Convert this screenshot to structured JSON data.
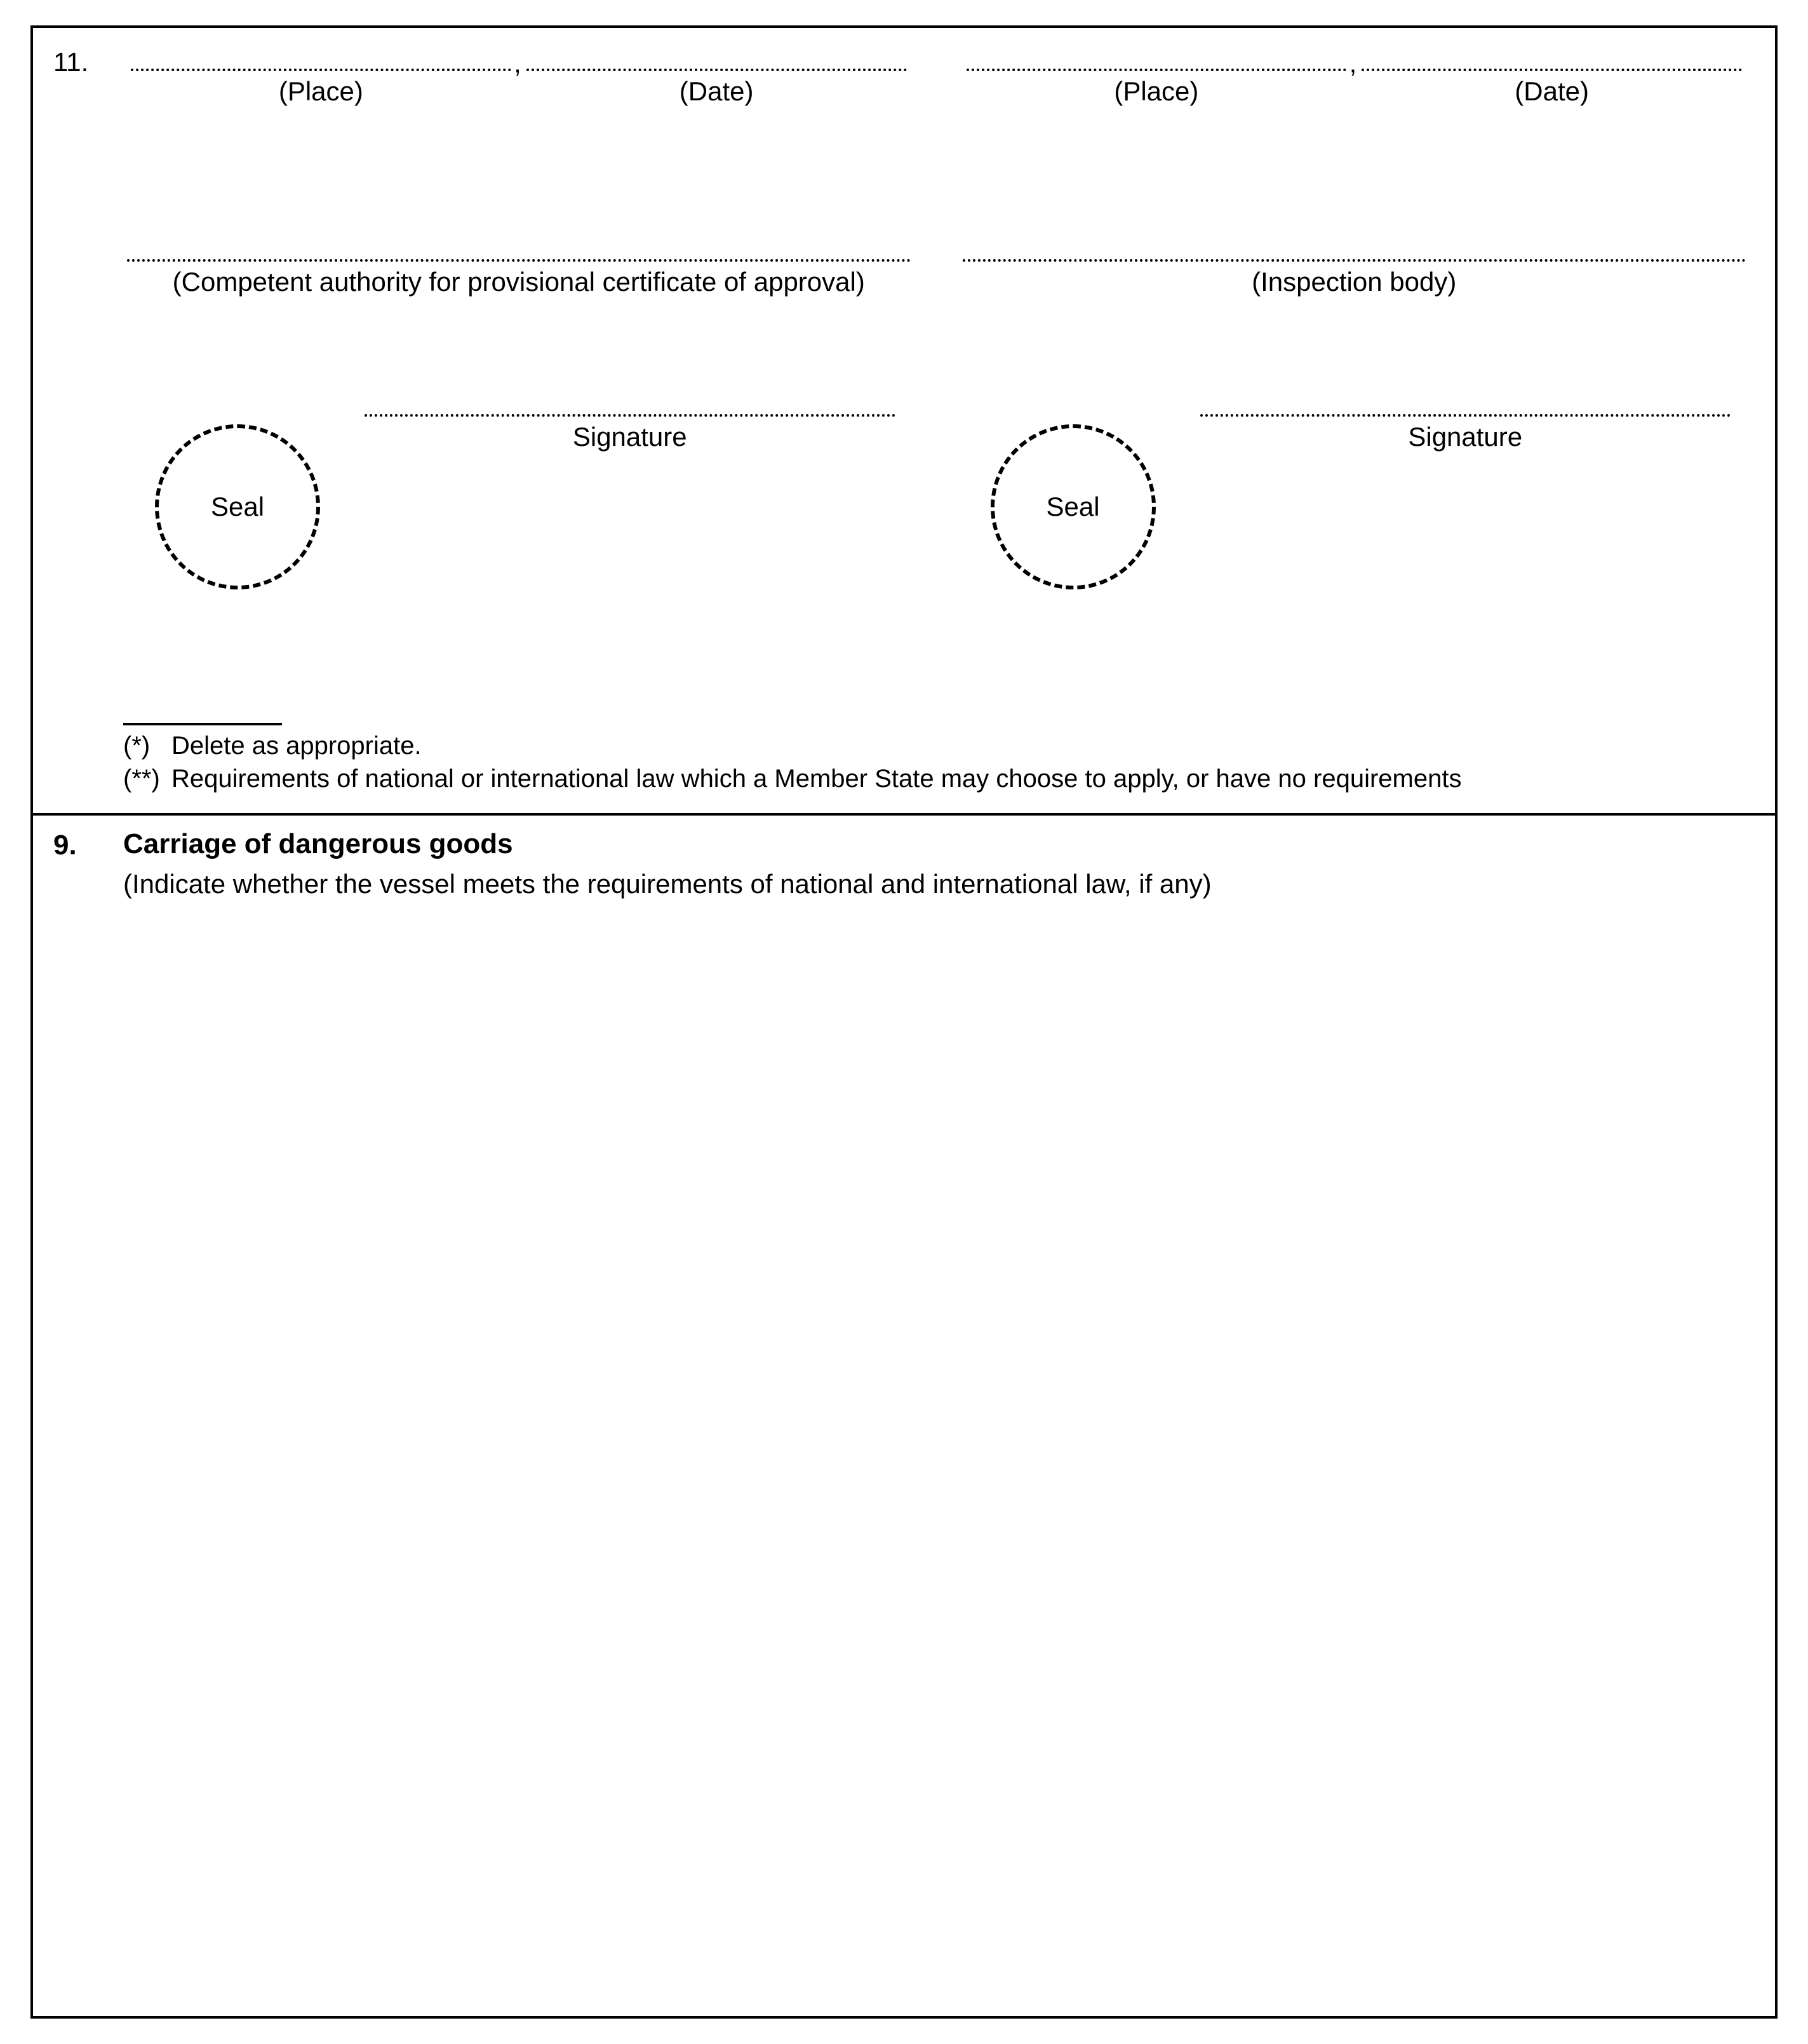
{
  "section11": {
    "number": "11.",
    "place_label": "(Place)",
    "date_label": "(Date)",
    "authority_label": "(Competent authority for provisional certificate of approval)",
    "inspection_label": "(Inspection body)",
    "seal_label": "Seal",
    "signature_label": "Signature",
    "footnote1_mark": "(*)",
    "footnote1_text": "Delete as appropriate.",
    "footnote2_mark": "(**)",
    "footnote2_text": "Requirements of national or international law which a Member State may choose to apply, or have no requirements"
  },
  "section9": {
    "number": "9.",
    "title": "Carriage of dangerous goods",
    "subtitle": "(Indicate whether the vessel meets the requirements of national and international law, if any)"
  }
}
